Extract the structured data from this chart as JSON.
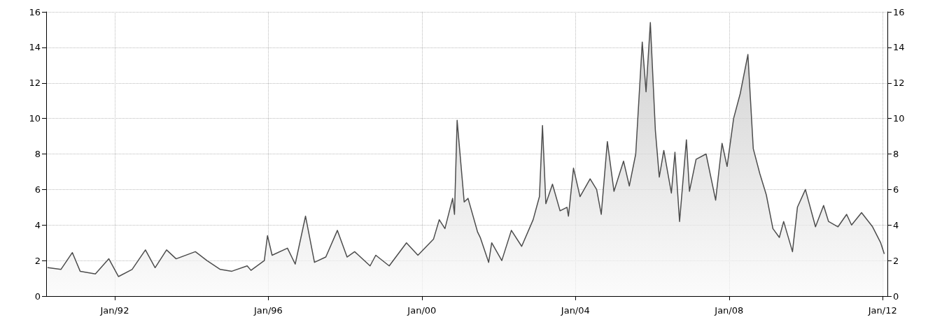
{
  "chart_data": {
    "type": "area",
    "x": [
      "1990-04-05",
      "1990-08-07",
      "1990-11-24",
      "1991-02-06",
      "1991-07-01",
      "1991-11-06",
      "1992-02-06",
      "1992-06-14",
      "1992-10-19",
      "1993-01-19",
      "1993-05-08",
      "1993-08-07",
      "1994-02-06",
      "1994-05-27",
      "1994-10-01",
      "1995-01-19",
      "1995-06-14",
      "1995-07-20",
      "1995-11-24",
      "1995-12-24",
      "1996-02-06",
      "1996-07-01",
      "1996-09-13",
      "1996-12-20",
      "1997-03-15",
      "1997-07-01",
      "1997-10-19",
      "1998-01-19",
      "1998-04-01",
      "1998-08-26",
      "1998-10-19",
      "1999-02-24",
      "1999-08-07",
      "1999-11-24",
      "2000-04-20",
      "2000-06-14",
      "2000-08-07",
      "2000-10-19",
      "2000-11-06",
      "2000-12-01",
      "2001-02-06",
      "2001-03-15",
      "2001-06-14",
      "2001-07-09",
      "2001-09-27",
      "2001-10-26",
      "2002-01-30",
      "2002-05-01",
      "2002-08-07",
      "2002-11-24",
      "2003-01-23",
      "2003-02-21",
      "2003-03-25",
      "2003-05-27",
      "2003-08-07",
      "2003-10-12",
      "2003-10-26",
      "2003-12-13",
      "2004-02-13",
      "2004-05-19",
      "2004-07-20",
      "2004-09-02",
      "2004-10-30",
      "2005-01-01",
      "2005-04-02",
      "2005-05-27",
      "2005-07-27",
      "2005-09-27",
      "2005-11-02",
      "2005-12-13",
      "2006-01-30",
      "2006-03-08",
      "2006-04-20",
      "2006-07-01",
      "2006-08-04",
      "2006-09-17",
      "2006-11-21",
      "2006-12-20",
      "2007-02-21",
      "2007-05-27",
      "2007-08-26",
      "2007-10-26",
      "2007-12-13",
      "2008-02-13",
      "2008-04-16",
      "2008-06-28",
      "2008-08-18",
      "2008-10-19",
      "2008-12-20",
      "2009-02-21",
      "2009-04-23",
      "2009-06-03",
      "2009-08-26",
      "2009-10-12",
      "2009-12-27",
      "2010-04-02",
      "2010-06-18",
      "2010-08-04",
      "2010-11-02",
      "2011-01-23",
      "2011-03-11",
      "2011-06-14",
      "2011-09-27",
      "2011-12-13",
      "2012-01-15"
    ],
    "series": [
      {
        "color": "#4d4d4d",
        "values": [
          1.6,
          1.5,
          2.45,
          1.4,
          1.25,
          2.1,
          1.1,
          1.5,
          2.6,
          1.6,
          2.6,
          2.1,
          2.5,
          2.0,
          1.5,
          1.4,
          1.7,
          1.45,
          2.0,
          3.4,
          2.3,
          2.7,
          1.8,
          4.5,
          1.9,
          2.2,
          3.7,
          2.2,
          2.5,
          1.7,
          2.3,
          1.7,
          3.0,
          2.3,
          3.2,
          4.3,
          3.8,
          5.5,
          4.6,
          9.9,
          5.3,
          5.5,
          3.6,
          3.3,
          1.9,
          3.0,
          2.0,
          3.7,
          2.8,
          4.3,
          5.6,
          9.6,
          5.2,
          6.3,
          4.8,
          5.0,
          4.5,
          7.2,
          5.6,
          6.6,
          6.0,
          4.6,
          8.7,
          5.9,
          7.6,
          6.2,
          8.0,
          14.3,
          11.5,
          15.4,
          9.3,
          6.7,
          8.2,
          5.8,
          8.1,
          4.2,
          8.8,
          5.9,
          7.7,
          8.0,
          5.4,
          8.6,
          7.3,
          10.0,
          11.4,
          13.6,
          8.3,
          6.9,
          5.7,
          3.8,
          3.3,
          4.2,
          2.5,
          5.0,
          6.0,
          3.9,
          5.1,
          4.2,
          3.9,
          4.6,
          4.0,
          4.7,
          3.9,
          3.0,
          2.4
        ]
      }
    ],
    "xlim": [
      "1990-03-20",
      "2012-02-15"
    ],
    "xticks": [
      {
        "value": "1992-01-01",
        "label": "Jan/92"
      },
      {
        "value": "1996-01-01",
        "label": "Jan/96"
      },
      {
        "value": "2000-01-01",
        "label": "Jan/00"
      },
      {
        "value": "2004-01-01",
        "label": "Jan/04"
      },
      {
        "value": "2008-01-01",
        "label": "Jan/08"
      },
      {
        "value": "2012-01-01",
        "label": "Jan/12"
      }
    ],
    "ylim": [
      0,
      16
    ],
    "yticks": [
      0,
      2,
      4,
      6,
      8,
      10,
      12,
      14,
      16
    ],
    "y2lim": [
      0,
      16
    ],
    "y2ticks": [
      0,
      2,
      4,
      6,
      8,
      10,
      12,
      14,
      16
    ],
    "grid": true,
    "marker": "none",
    "line_style": "solid"
  }
}
